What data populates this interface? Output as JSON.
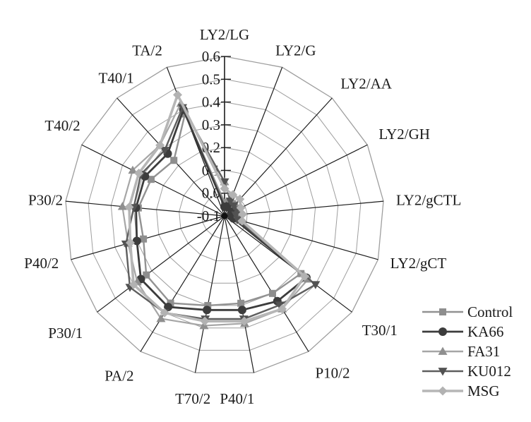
{
  "figure": {
    "background": "#ffffff",
    "text_color": "#1a1a1a",
    "grid_color": "#9e9e9e",
    "spoke_color": "#1c1c1c"
  },
  "chart_data": {
    "type": "radar",
    "title": "",
    "grid": "polygonal",
    "legend_position": "bottom-right",
    "categories": [
      "LY2/LG",
      "LY2/G",
      "LY2/AA",
      "LY2/GH",
      "LY2/gCTL",
      "LY2/gCT",
      "T30/1",
      "P10/2",
      "P40/1",
      "T70/2",
      "PA/2",
      "P30/1",
      "P40/2",
      "P30/2",
      "T40/2",
      "T40/1",
      "TA/2"
    ],
    "radial_axis": {
      "min": -0.1,
      "max": 0.6,
      "step": 0.1,
      "tick_labels": [
        "0.6",
        "0.5",
        "0.4",
        "0.3",
        "0.2",
        "0.1",
        "0.0",
        "-0.1"
      ],
      "tick_values": [
        0.6,
        0.5,
        0.4,
        0.3,
        0.2,
        0.1,
        0.0,
        -0.1
      ]
    },
    "series": [
      {
        "name": "Control",
        "marker": "square",
        "color": "#8e8e8e",
        "line_color": "#929292",
        "line_width": 2.4,
        "values": [
          -0.04,
          -0.04,
          -0.05,
          -0.05,
          -0.06,
          -0.05,
          0.32,
          0.3,
          0.29,
          0.3,
          0.35,
          0.33,
          0.27,
          0.28,
          0.26,
          0.23,
          0.38
        ]
      },
      {
        "name": "KA66",
        "marker": "circle",
        "color": "#3c3c3c",
        "line_color": "#3c3c3c",
        "line_width": 2.8,
        "values": [
          -0.06,
          -0.05,
          -0.06,
          -0.06,
          -0.07,
          -0.06,
          0.35,
          0.34,
          0.32,
          0.32,
          0.37,
          0.36,
          0.3,
          0.29,
          0.29,
          0.27,
          0.4
        ]
      },
      {
        "name": "FA31",
        "marker": "triangle-up",
        "color": "#8f8f8f",
        "line_color": "#a6a6a6",
        "line_width": 2.2,
        "values": [
          0.05,
          -0.02,
          -0.03,
          -0.03,
          -0.04,
          -0.03,
          0.36,
          0.38,
          0.38,
          0.39,
          0.43,
          0.38,
          0.34,
          0.35,
          0.35,
          0.32,
          0.43
        ]
      },
      {
        "name": "KU012",
        "marker": "triangle-down",
        "color": "#525252",
        "line_color": "#5e5e5e",
        "line_width": 2.4,
        "values": [
          0.05,
          -0.03,
          -0.04,
          -0.04,
          -0.05,
          -0.04,
          0.4,
          0.36,
          0.36,
          0.36,
          0.4,
          0.42,
          0.35,
          0.3,
          0.31,
          0.29,
          0.41
        ]
      },
      {
        "name": "MSG",
        "marker": "diamond",
        "color": "#b2b2b2",
        "line_color": "#b6b6b6",
        "line_width": 3.6,
        "values": [
          0.02,
          0.0,
          0.0,
          -0.02,
          -0.02,
          -0.02,
          0.34,
          0.38,
          0.37,
          0.37,
          0.4,
          0.4,
          0.33,
          0.32,
          0.32,
          0.32,
          0.47
        ]
      }
    ]
  }
}
